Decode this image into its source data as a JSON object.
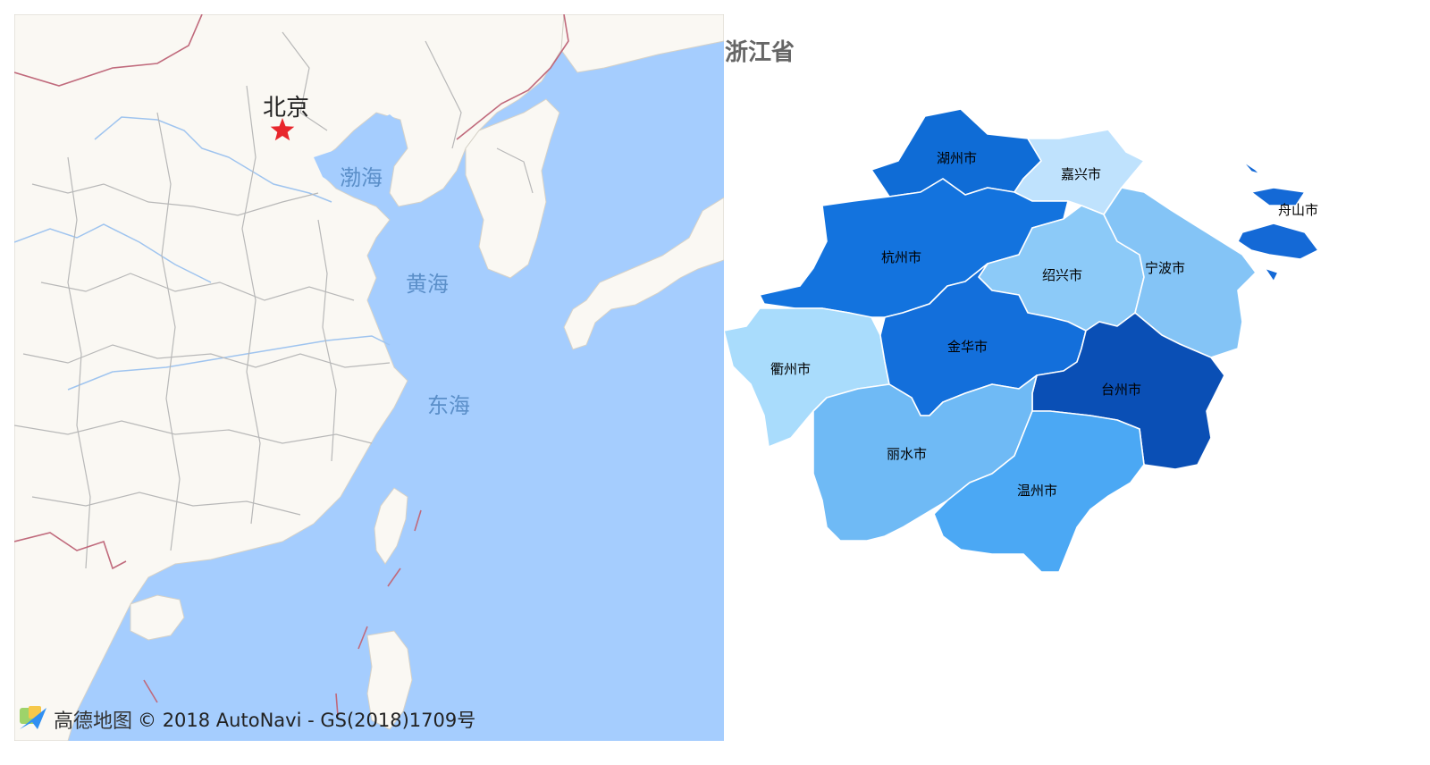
{
  "basemap": {
    "capital_label": "北京",
    "sea_labels": {
      "bohai": "渤海",
      "huanghai": "黄海",
      "donghai": "东海"
    },
    "attribution": {
      "logo_text": "高德地图",
      "copyright": "© 2018 AutoNavi - GS(2018)1709号"
    },
    "colors": {
      "land": "#faf8f3",
      "water": "#a5cdfe",
      "border": "#c06a7c",
      "province_line": "#b8b8b8"
    }
  },
  "choropleth": {
    "title": "浙江省",
    "regions": [
      {
        "name": "湖州市",
        "color": "#0f6cd6"
      },
      {
        "name": "嘉兴市",
        "color": "#bfe2fd"
      },
      {
        "name": "杭州市",
        "color": "#1373de"
      },
      {
        "name": "绍兴市",
        "color": "#8ccaf8"
      },
      {
        "name": "宁波市",
        "color": "#84c4f6"
      },
      {
        "name": "舟山市",
        "color": "#1469d6"
      },
      {
        "name": "衢州市",
        "color": "#a9dcfc"
      },
      {
        "name": "金华市",
        "color": "#136fdb"
      },
      {
        "name": "台州市",
        "color": "#0a4fb5"
      },
      {
        "name": "丽水市",
        "color": "#6fbaf5"
      },
      {
        "name": "温州市",
        "color": "#4ba8f4"
      }
    ]
  }
}
